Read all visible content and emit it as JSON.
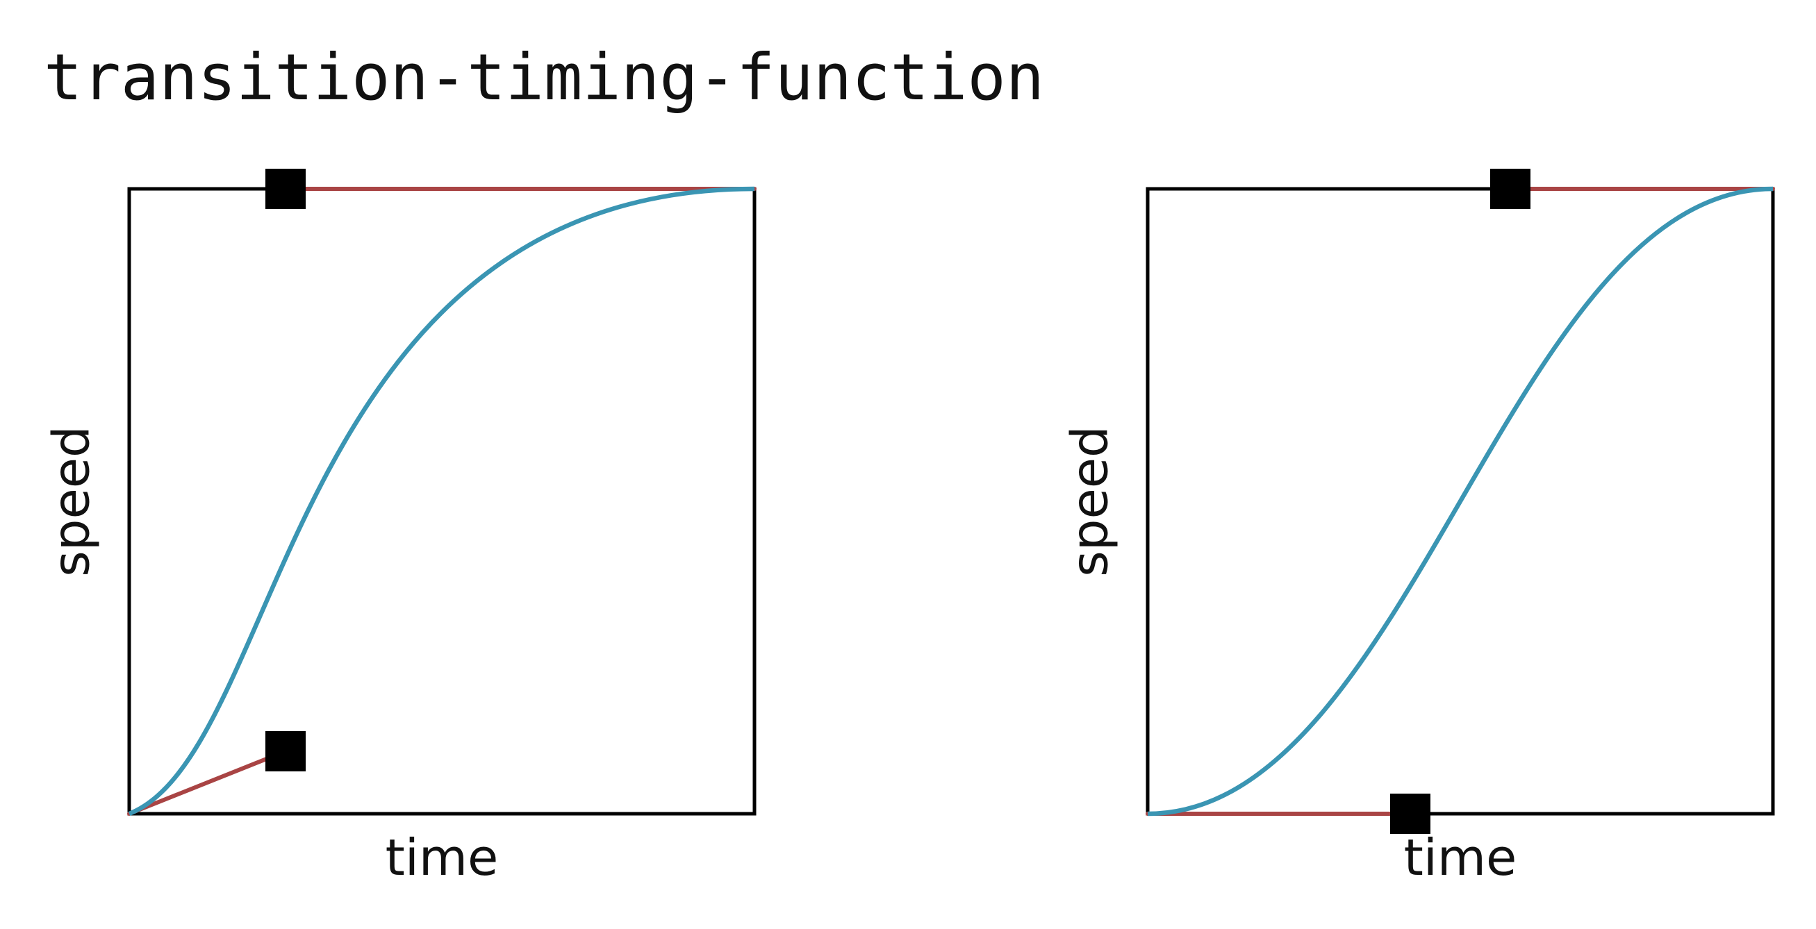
{
  "title": "transition-timing-function",
  "colors": {
    "curve": "#3a95b3",
    "handle_line": "#a94444",
    "frame": "#000000",
    "handle": "#000000"
  },
  "graphs": [
    {
      "name": "left",
      "xlabel": "time",
      "ylabel": "speed",
      "control_points": [
        [
          0.25,
          0.1
        ],
        [
          0.25,
          1.0
        ]
      ]
    },
    {
      "name": "right",
      "xlabel": "time",
      "ylabel": "speed",
      "control_points": [
        [
          0.42,
          0.0
        ],
        [
          0.58,
          1.0
        ]
      ]
    }
  ]
}
